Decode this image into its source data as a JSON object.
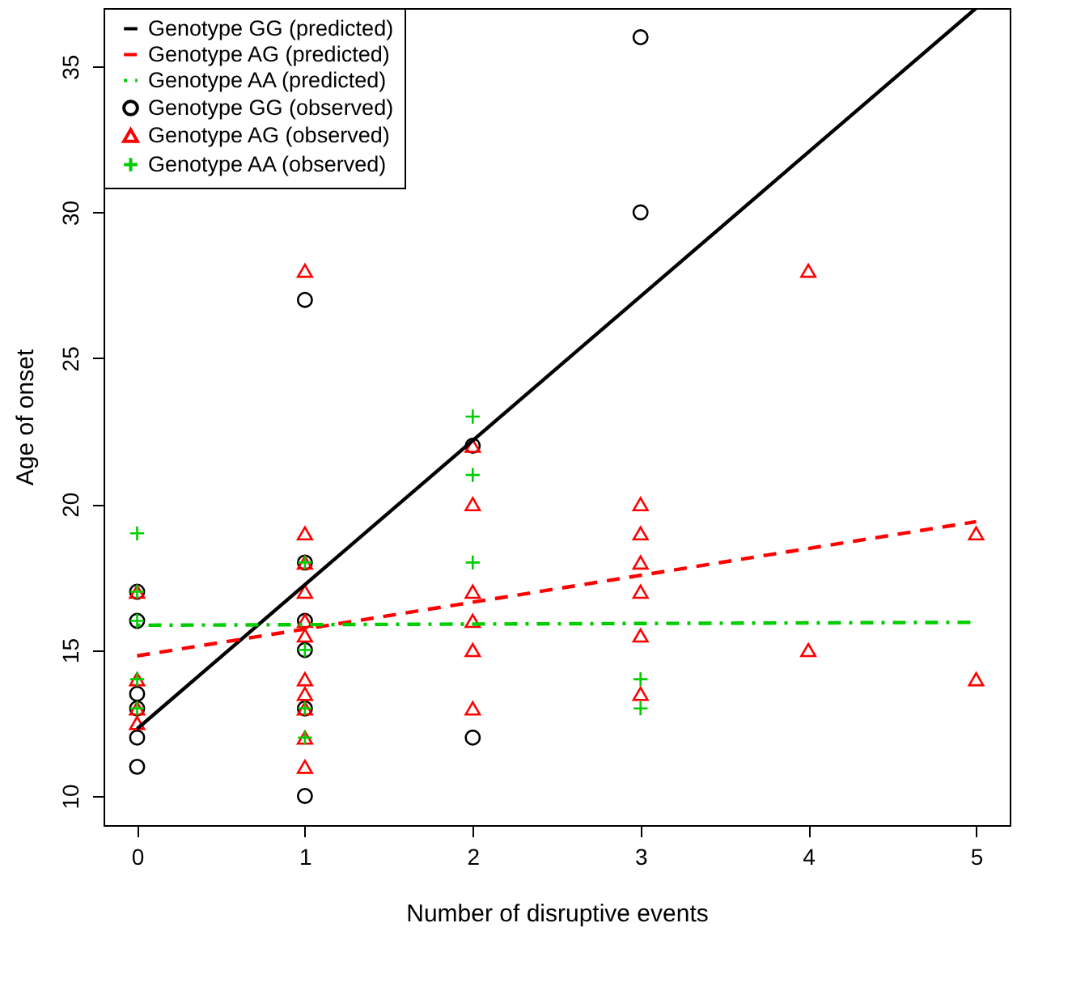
{
  "chart_data": {
    "type": "scatter",
    "xlabel": "Number of disruptive events",
    "ylabel": "Age of onset",
    "xlim": [
      -0.2,
      5.2
    ],
    "ylim": [
      9,
      37
    ],
    "xticks": [
      0,
      1,
      2,
      3,
      4,
      5
    ],
    "yticks": [
      10,
      15,
      20,
      25,
      30,
      35
    ],
    "grid": false,
    "legend": "top left",
    "series": [
      {
        "name": "Genotype GG (predicted)",
        "type": "line",
        "color": "#000000",
        "line_style": "solid",
        "x": [
          0,
          5
        ],
        "values": [
          12.3,
          37
        ]
      },
      {
        "name": "Genotype AG (predicted)",
        "type": "line",
        "color": "#ff0000",
        "line_style": "dashed",
        "x": [
          0,
          5
        ],
        "values": [
          14.8,
          19.4
        ]
      },
      {
        "name": "Genotype AA (predicted)",
        "type": "line",
        "color": "#00cd00",
        "line_style": "dashdot",
        "x": [
          0,
          5
        ],
        "values": [
          15.85,
          15.95
        ]
      },
      {
        "name": "Genotype GG (observed)",
        "color": "#000000",
        "marker": "circle",
        "x": [
          0,
          0,
          0,
          0,
          0,
          0,
          1,
          1,
          1,
          1,
          1,
          1,
          2,
          2,
          3,
          3
        ],
        "values": [
          17,
          16,
          13.5,
          13,
          12,
          11,
          27,
          18,
          16,
          15,
          13,
          10,
          22,
          12,
          36,
          30
        ]
      },
      {
        "name": "Genotype AG (observed)",
        "color": "#ff0000",
        "marker": "triangle",
        "x": [
          0,
          0,
          0,
          0,
          1,
          1,
          1,
          1,
          1,
          1,
          1,
          1,
          1,
          1,
          1,
          2,
          2,
          2,
          2,
          2,
          2,
          3,
          3,
          3,
          3,
          3,
          3,
          4,
          4,
          5,
          5
        ],
        "values": [
          17,
          14,
          13,
          12.5,
          28,
          19,
          18,
          17,
          16,
          15.5,
          14,
          13.5,
          13,
          12,
          11,
          22,
          20,
          17,
          16,
          15,
          13,
          20,
          19,
          18,
          17,
          15.5,
          13.5,
          28,
          15,
          19,
          14
        ]
      },
      {
        "name": "Genotype AA (observed)",
        "color": "#00cd00",
        "marker": "cross",
        "x": [
          0,
          0,
          0,
          0,
          0,
          1,
          1,
          1,
          1,
          2,
          2,
          2,
          3,
          3
        ],
        "values": [
          19,
          17,
          16,
          14,
          13,
          18,
          15,
          13,
          12,
          23,
          21,
          18,
          14,
          13
        ]
      }
    ]
  }
}
